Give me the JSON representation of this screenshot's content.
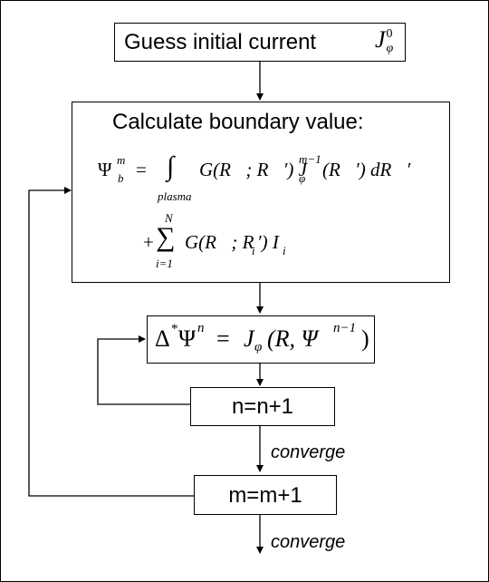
{
  "guess_box": {
    "text": "Guess initial current",
    "symbol": "J",
    "symbol_sup": "0",
    "symbol_sub": "φ"
  },
  "boundary_box": {
    "title": "Calculate boundary value:",
    "eq1_lhs": "Ψ",
    "eq1_lhs_sup": "m",
    "eq1_lhs_sub": "b",
    "eq1_eq": "=",
    "eq1_integral": "∫",
    "eq1_integral_sub": "plasma",
    "eq1_kernel": "G(R⃗; R⃗′) J",
    "eq1_j_sup": "m−1",
    "eq1_j_sub": "φ",
    "eq1_tail": "(R⃗′) dR⃗′",
    "eq2_plus": "+",
    "eq2_sum": "∑",
    "eq2_sum_sup": "N",
    "eq2_sum_sub": "i=1",
    "eq2_kernel": "G(R⃗; R⃗",
    "eq2_kernel_sub": "i",
    "eq2_kernel_end": "′) I",
    "eq2_i_sub": "i"
  },
  "gs_box": {
    "op": "Δ",
    "op_sup": "*",
    "psi": "Ψ",
    "psi_sup": "n",
    "eq": "=",
    "j": "J",
    "j_sub": "φ",
    "args_open": "(R, Ψ",
    "args_sup": "n−1",
    "args_close": ")"
  },
  "n_box": {
    "text": "n=n+1"
  },
  "m_box": {
    "text": "m=m+1"
  },
  "labels": {
    "converge_1": "converge",
    "converge_2": "converge"
  }
}
